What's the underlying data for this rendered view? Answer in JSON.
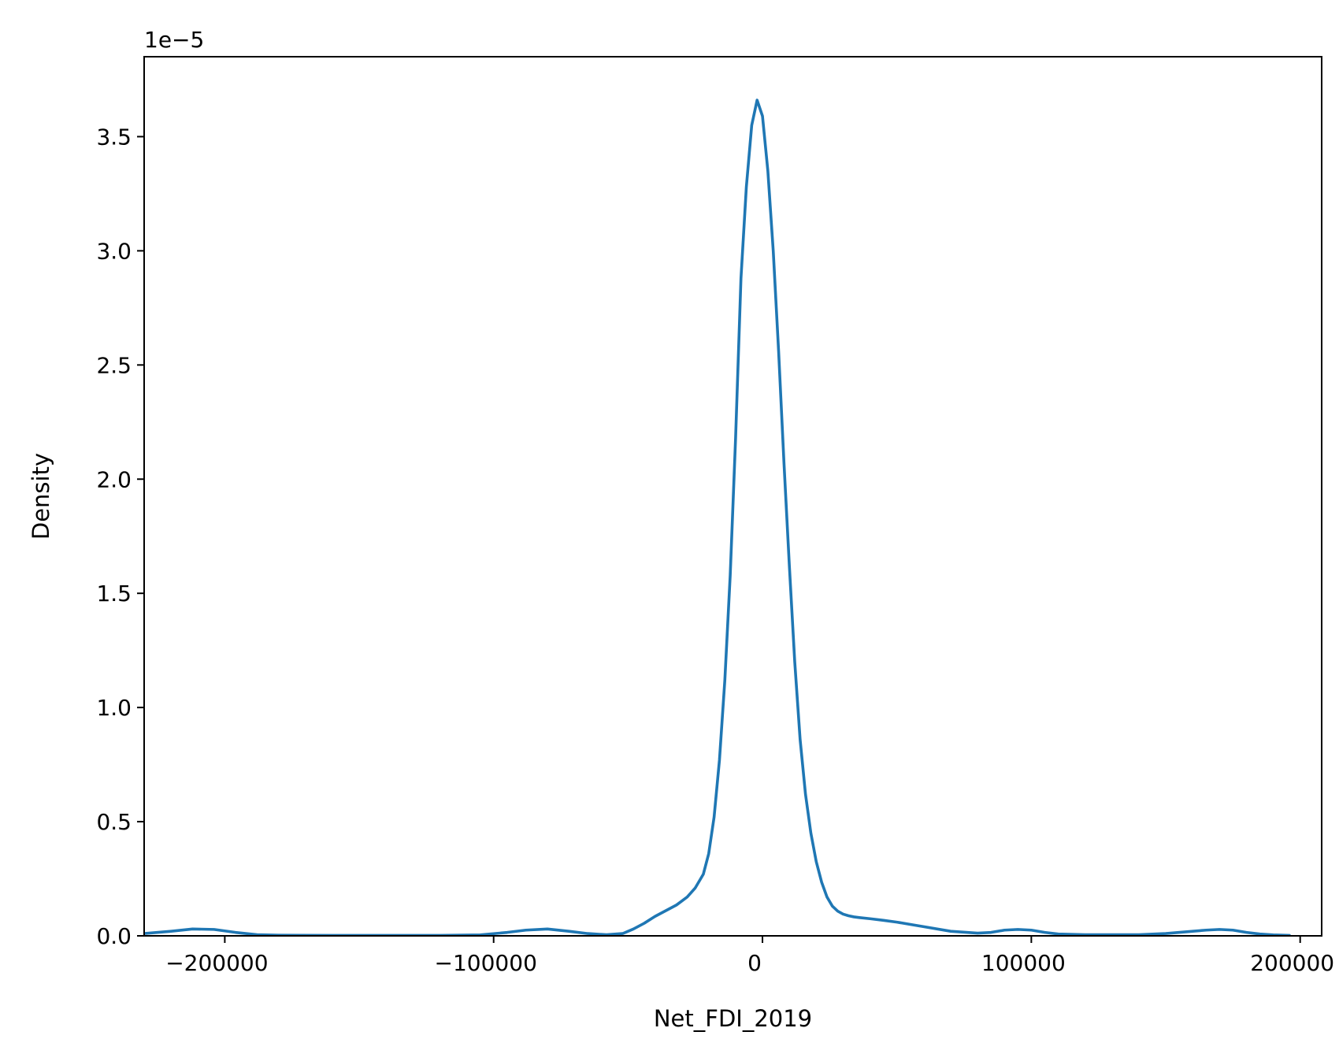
{
  "chart_data": {
    "type": "line",
    "title": "",
    "xlabel": "Net_FDI_2019",
    "ylabel": "Density",
    "y_offset_label": "1e−5",
    "y_scale_factor": 1e-05,
    "xlim": [
      -230000,
      208000
    ],
    "ylim": [
      0,
      3.85
    ],
    "grid": false,
    "legend": "none",
    "line_color": "#1f77b4",
    "x_ticks": [
      {
        "value": -200000,
        "label": "−200000"
      },
      {
        "value": -100000,
        "label": "−100000"
      },
      {
        "value": 0,
        "label": "0"
      },
      {
        "value": 100000,
        "label": "100000"
      },
      {
        "value": 200000,
        "label": "200000"
      }
    ],
    "y_ticks": [
      {
        "value": 0.0,
        "label": "0.0"
      },
      {
        "value": 0.5,
        "label": "0.5"
      },
      {
        "value": 1.0,
        "label": "1.0"
      },
      {
        "value": 1.5,
        "label": "1.5"
      },
      {
        "value": 2.0,
        "label": "2.0"
      },
      {
        "value": 2.5,
        "label": "2.5"
      },
      {
        "value": 3.0,
        "label": "3.0"
      },
      {
        "value": 3.5,
        "label": "3.5"
      }
    ],
    "series": [
      {
        "x": [
          -240000,
          -230000,
          -220000,
          -212000,
          -204000,
          -196000,
          -188000,
          -180000,
          -160000,
          -140000,
          -120000,
          -105000,
          -95000,
          -88000,
          -80000,
          -72000,
          -65000,
          -58000,
          -52000,
          -48000,
          -44000,
          -40000,
          -36000,
          -32000,
          -28000,
          -25000,
          -22000,
          -20000,
          -18000,
          -16000,
          -14000,
          -12000,
          -10000,
          -8000,
          -6000,
          -4000,
          -2000,
          0,
          2000,
          4000,
          6000,
          8000,
          10000,
          12000,
          14000,
          16000,
          18000,
          20000,
          22000,
          24000,
          26000,
          28000,
          30000,
          32000,
          34000,
          36000,
          40000,
          45000,
          50000,
          55000,
          60000,
          70000,
          80000,
          85000,
          90000,
          95000,
          100000,
          105000,
          110000,
          120000,
          140000,
          150000,
          160000,
          165000,
          170000,
          175000,
          180000,
          185000,
          190000,
          196000
        ],
        "y": [
          0.005,
          0.01,
          0.02,
          0.03,
          0.028,
          0.015,
          0.005,
          0.003,
          0.002,
          0.002,
          0.002,
          0.004,
          0.015,
          0.025,
          0.03,
          0.02,
          0.01,
          0.005,
          0.01,
          0.03,
          0.055,
          0.085,
          0.11,
          0.135,
          0.17,
          0.21,
          0.27,
          0.36,
          0.52,
          0.77,
          1.12,
          1.58,
          2.18,
          2.88,
          3.28,
          3.55,
          3.66,
          3.59,
          3.35,
          3.0,
          2.56,
          2.07,
          1.62,
          1.2,
          0.86,
          0.62,
          0.45,
          0.325,
          0.235,
          0.17,
          0.13,
          0.108,
          0.095,
          0.088,
          0.083,
          0.08,
          0.075,
          0.068,
          0.06,
          0.05,
          0.04,
          0.02,
          0.012,
          0.015,
          0.025,
          0.028,
          0.025,
          0.015,
          0.008,
          0.005,
          0.005,
          0.01,
          0.02,
          0.025,
          0.028,
          0.025,
          0.015,
          0.008,
          0.004,
          0.002
        ]
      }
    ]
  }
}
